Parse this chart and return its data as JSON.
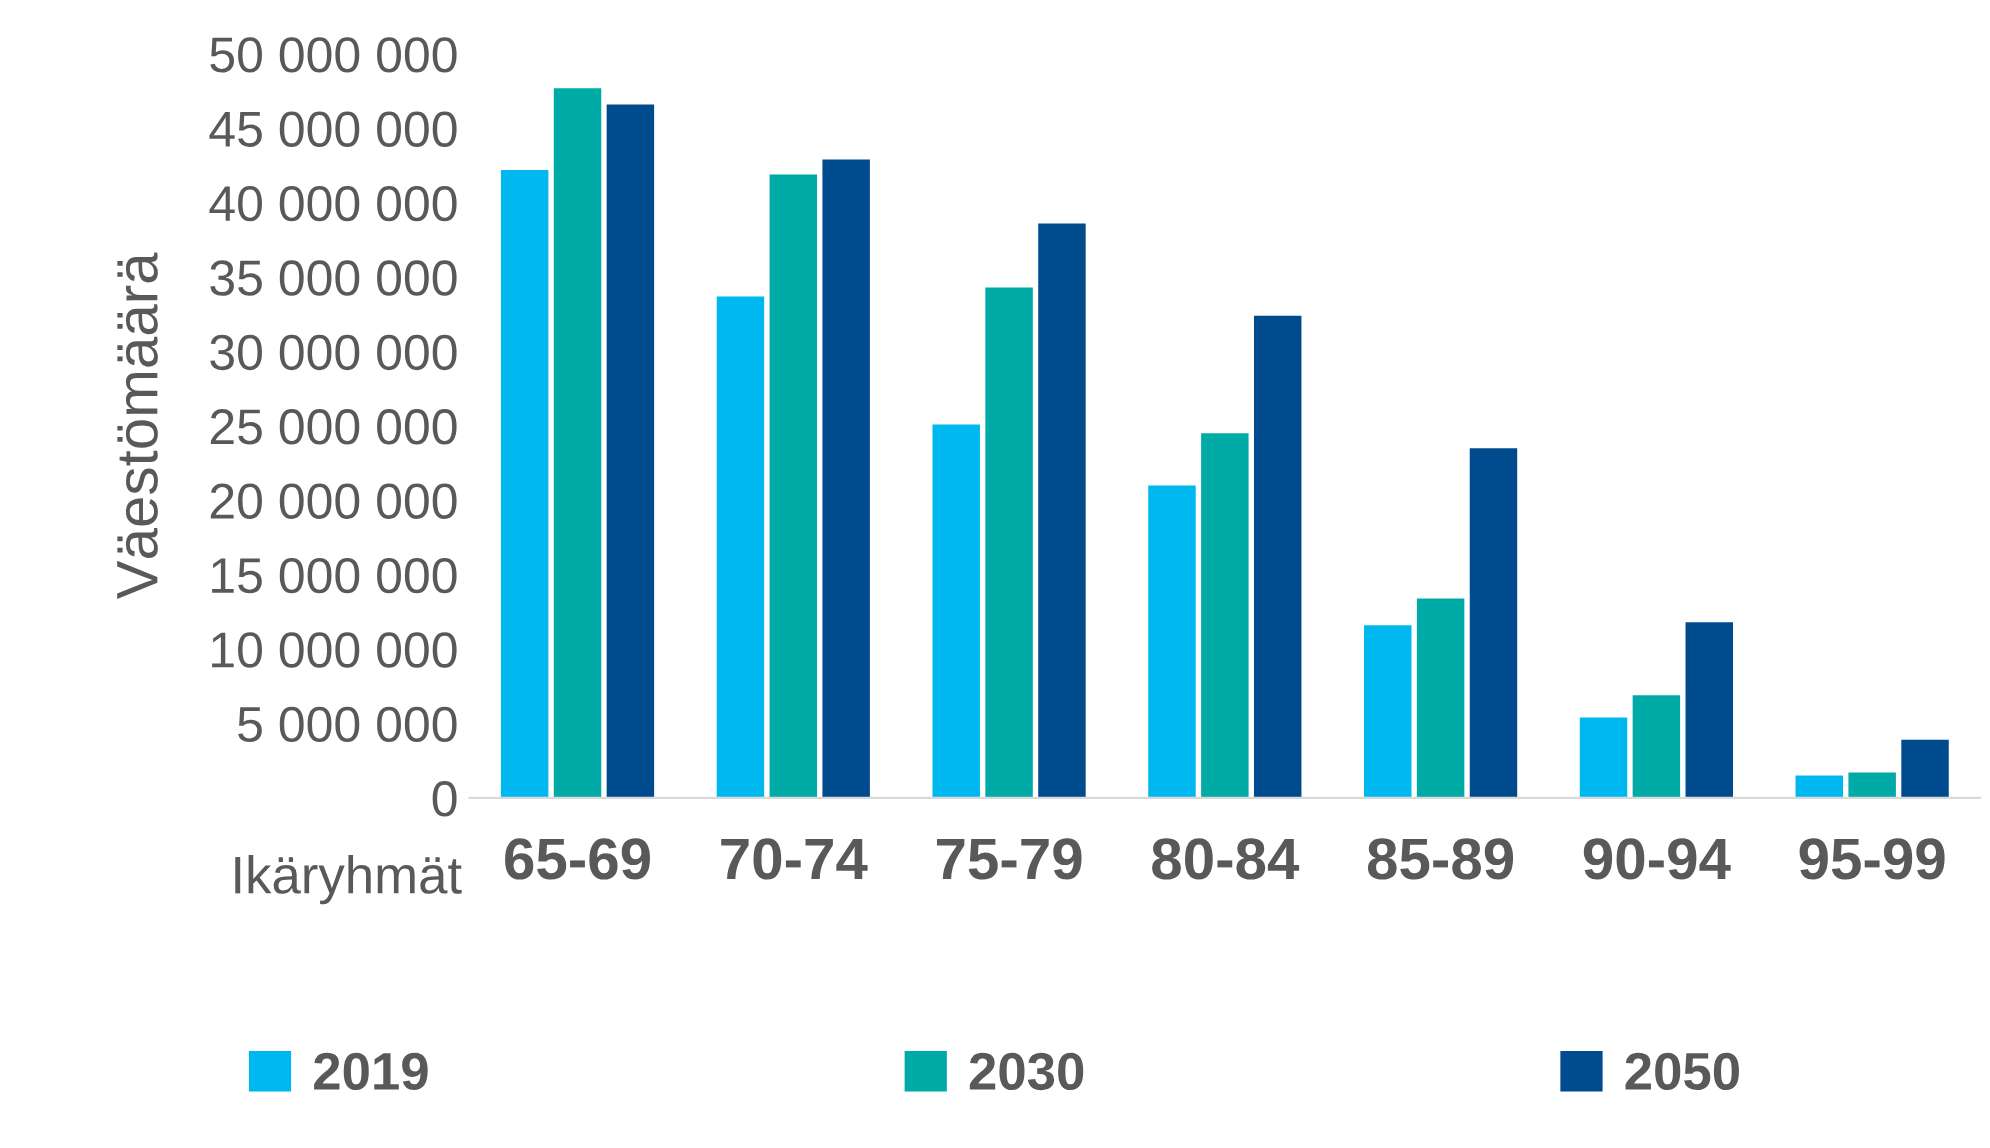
{
  "chart_data": {
    "type": "bar",
    "xlabel": "Ikäryhmät",
    "ylabel": "Väestömäärä",
    "categories": [
      "65-69",
      "70-74",
      "75-79",
      "80-84",
      "85-89",
      "90-94",
      "95-99"
    ],
    "series": [
      {
        "name": "2019",
        "color": "#00b8f0",
        "values": [
          42200000,
          33700000,
          25100000,
          21000000,
          11600000,
          5400000,
          1500000
        ]
      },
      {
        "name": "2030",
        "color": "#00aaa7",
        "values": [
          47700000,
          41900000,
          34300000,
          24500000,
          13400000,
          6900000,
          1700000
        ]
      },
      {
        "name": "2050",
        "color": "#004b8d",
        "values": [
          46600000,
          42900000,
          38600000,
          32400000,
          23500000,
          11800000,
          3900000
        ]
      }
    ],
    "ylim": [
      0,
      50000000
    ],
    "yticks": [
      {
        "value": 0,
        "label": "0"
      },
      {
        "value": 5000000,
        "label": "5 000 000"
      },
      {
        "value": 10000000,
        "label": "10 000 000"
      },
      {
        "value": 15000000,
        "label": "15 000 000"
      },
      {
        "value": 20000000,
        "label": "20 000 000"
      },
      {
        "value": 25000000,
        "label": "25 000 000"
      },
      {
        "value": 30000000,
        "label": "30 000 000"
      },
      {
        "value": 35000000,
        "label": "35 000 000"
      },
      {
        "value": 40000000,
        "label": "40 000 000"
      },
      {
        "value": 45000000,
        "label": "45 000 000"
      },
      {
        "value": 50000000,
        "label": "50 000 000"
      }
    ],
    "grid": false,
    "legend": "bottom"
  }
}
